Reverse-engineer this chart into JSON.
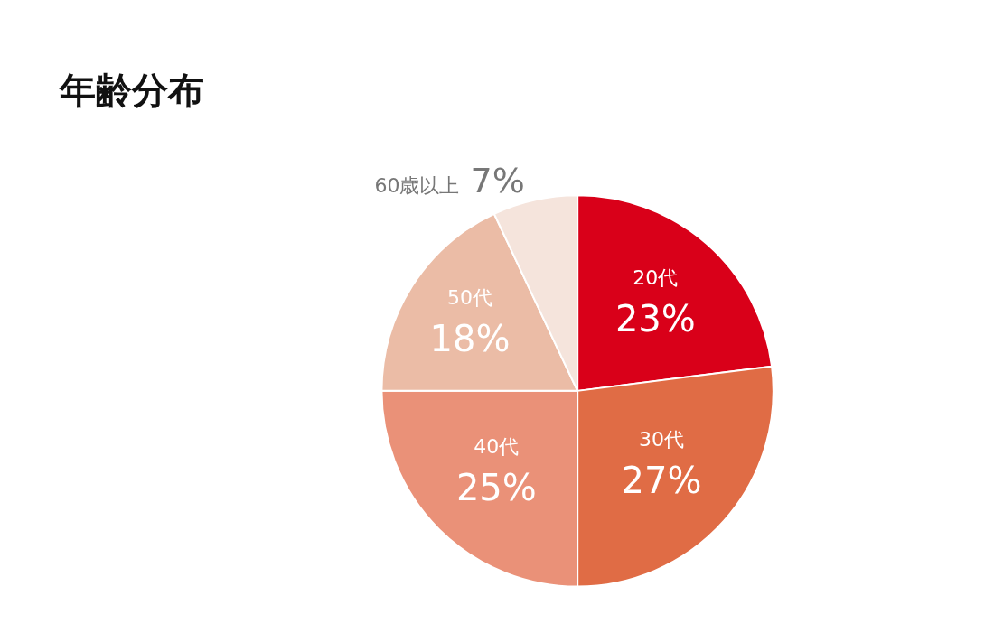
{
  "chart_data": {
    "type": "pie",
    "title": "年齢分布",
    "categories": [
      "20代",
      "30代",
      "40代",
      "50代",
      "60歳以上"
    ],
    "values": [
      23,
      27,
      25,
      18,
      7
    ],
    "value_labels": [
      "23%",
      "27%",
      "25%",
      "18%",
      "7%"
    ],
    "colors": [
      "#d90019",
      "#e06c45",
      "#ea9178",
      "#ebbca6",
      "#f5e4dc"
    ]
  }
}
